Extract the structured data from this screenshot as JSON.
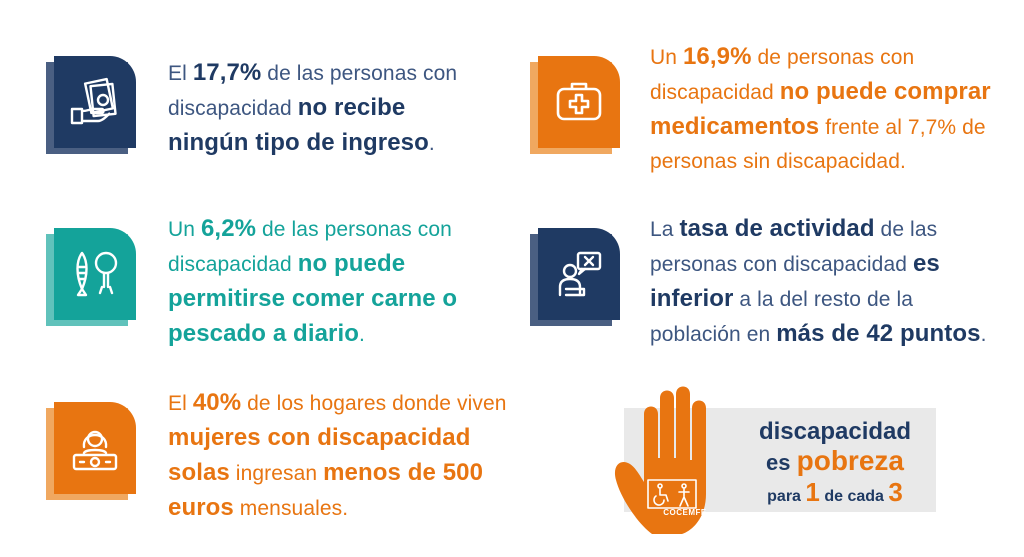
{
  "colors": {
    "navy": "#1f3a63",
    "orange": "#e87511",
    "teal": "#14a39a",
    "shadow_navy": "#4a5f82",
    "shadow_orange": "#f0a860",
    "shadow_teal": "#60c2bb"
  },
  "stats": {
    "income": {
      "icon": "money-hand-icon",
      "p1": "El ",
      "pct": "17,7%",
      "p2": " de las personas con",
      "p3": "discapacidad ",
      "b1": "no recibe",
      "b2": "ningún tipo de ingreso",
      "p4": "."
    },
    "medicine": {
      "icon": "medical-kit-icon",
      "p1": "Un ",
      "pct": "16,9%",
      "p2": " de personas con",
      "p3": "discapacidad ",
      "b1": "no puede comprar",
      "b2": "medicamentos",
      "p4": " frente al 7,7% de",
      "p5": "personas sin discapacidad."
    },
    "food": {
      "icon": "fish-chicken-icon",
      "p1": "Un ",
      "pct": "6,2%",
      "p2": " de las personas con",
      "p3": "discapacidad ",
      "b1": "no puede",
      "b2": "permitirse comer carne o",
      "b3": "pescado a diario",
      "p4": "."
    },
    "activity": {
      "icon": "person-chat-icon",
      "p1": "La ",
      "b0": "tasa de actividad",
      "p2": " de las",
      "p3": "personas con discapacidad ",
      "b1": "es",
      "b2": "inferior",
      "p4": " a la del resto de la",
      "p5": "población en ",
      "b3": "más de 42 puntos",
      "p6": "."
    },
    "households": {
      "icon": "woman-money-icon",
      "p1": "El ",
      "pct": "40%",
      "p2": " de los hogares donde viven",
      "b1": "mujeres con discapacidad",
      "b2": "solas",
      "p3": " ingresan ",
      "b3": "menos de 500",
      "b4": "euros",
      "p4": " mensuales."
    }
  },
  "logo": {
    "line1": "discapacidad",
    "line2_a": "es ",
    "line2_b": "pobreza",
    "line3_a": "para ",
    "line3_b": "1",
    "line3_c": " de cada ",
    "line3_d": "3",
    "brand": "COCEMFE"
  }
}
